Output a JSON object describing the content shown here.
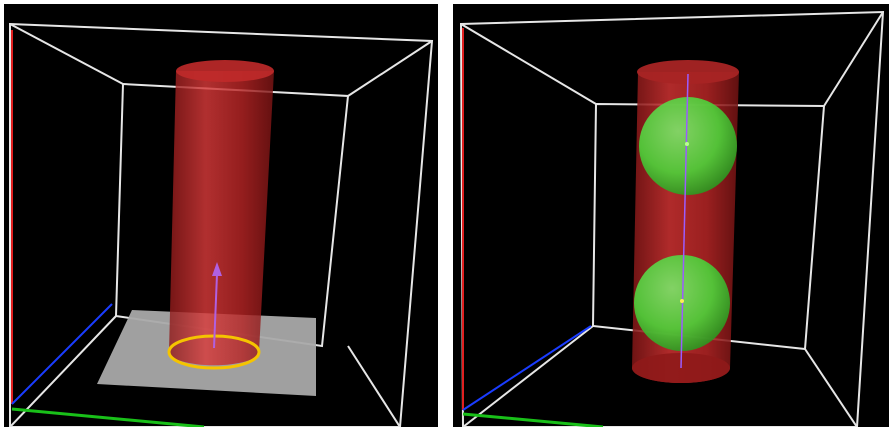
{
  "panels": [
    {
      "id": "left",
      "scene": "cylinder-on-plane",
      "colors": {
        "background": "#000000",
        "box": "#e6e6e6",
        "cylinder": "#d42a2a",
        "plane": "#a9a9a9",
        "ring": "#f5c400",
        "arrow": "#b060e0",
        "axis_x": "#1a3cff",
        "axis_y": "#19c019",
        "axis_z": "#e02020"
      }
    },
    {
      "id": "right",
      "scene": "cylinder-with-spheres",
      "colors": {
        "background": "#000000",
        "box": "#e6e6e6",
        "cylinder": "#d42a2a",
        "sphere": "#4fcf3a",
        "axis_line": "#9b5cff",
        "axis_x": "#1a3cff",
        "axis_y": "#19c019",
        "axis_z": "#e02020"
      }
    }
  ]
}
